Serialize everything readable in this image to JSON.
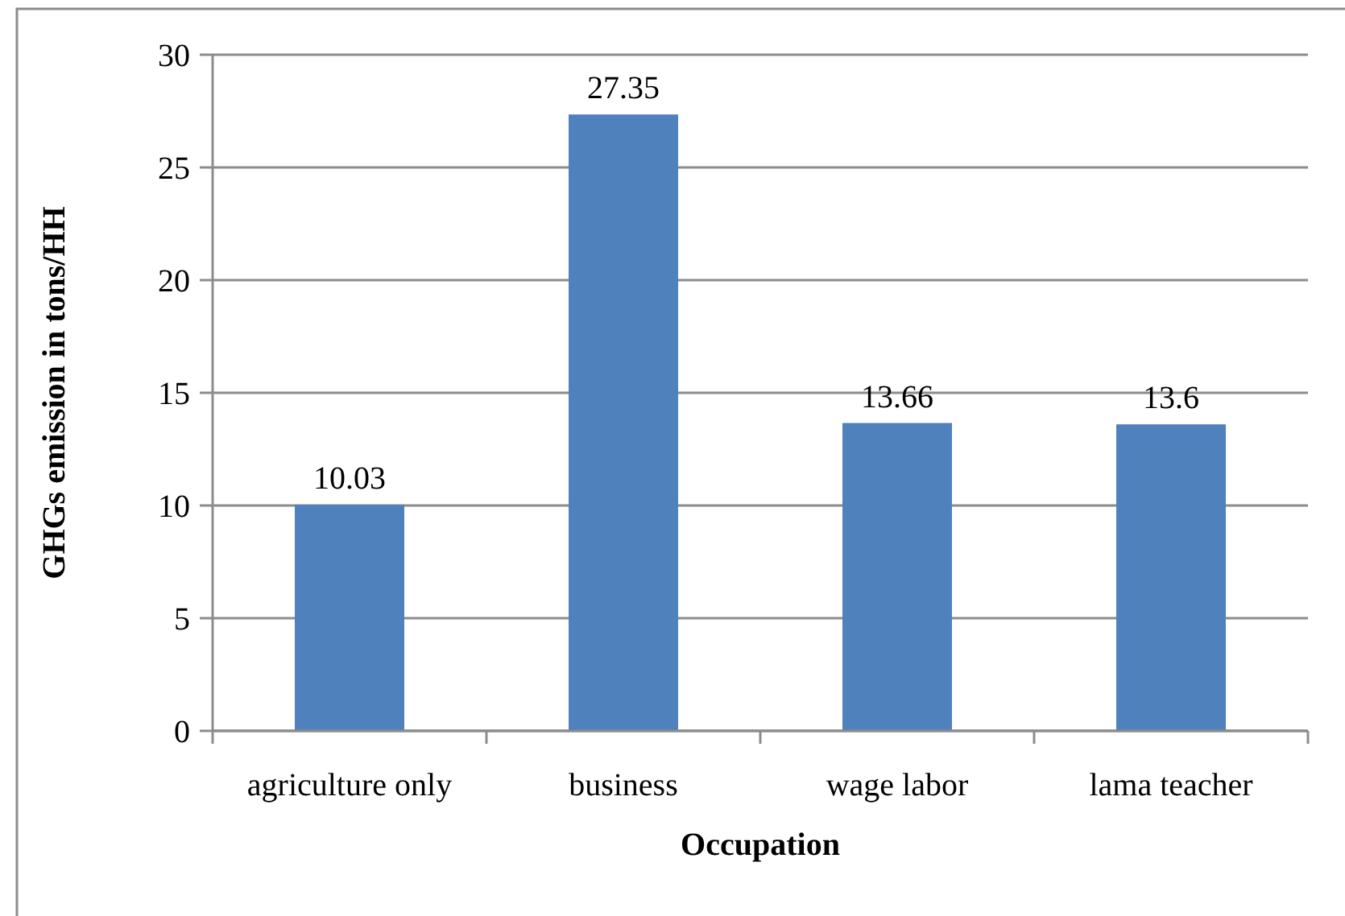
{
  "chart_data": {
    "type": "bar",
    "xlabel": "Occupation",
    "ylabel": "GHGs emission in tons/HH",
    "categories": [
      "agriculture only",
      "business",
      "wage labor",
      "lama teacher"
    ],
    "values": [
      10.03,
      27.35,
      13.66,
      13.6
    ],
    "color": "#4f81bd",
    "ylim": [
      0,
      30
    ],
    "yticks": [
      0,
      5,
      10,
      15,
      20,
      25,
      30
    ],
    "grid": "y",
    "data_labels": true
  }
}
